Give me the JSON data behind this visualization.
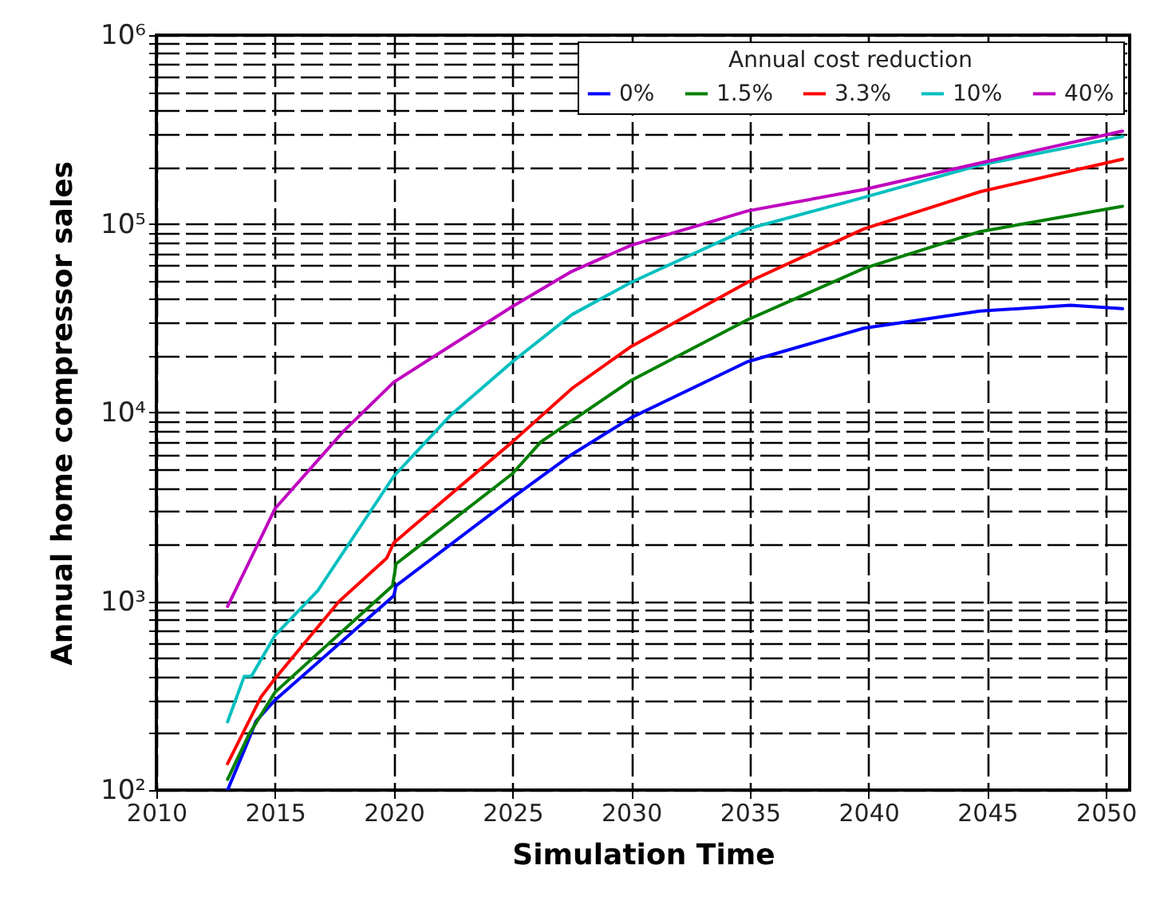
{
  "chart_data": {
    "type": "line",
    "xlabel": "Simulation Time",
    "ylabel": "Annual home compressor sales",
    "legend_title": "Annual cost reduction",
    "legend": "top right",
    "grid": true,
    "log": "y",
    "marker": "none",
    "line_style": "solid",
    "xlim": [
      2010,
      2051
    ],
    "xticks": [
      2010,
      2015,
      2020,
      2025,
      2030,
      2035,
      2040,
      2045,
      2050
    ],
    "ylim": [
      100,
      1000000
    ],
    "yticks": [
      {
        "value": 100,
        "label": "10²"
      },
      {
        "value": 200,
        "label": null
      },
      {
        "value": 300,
        "label": null
      },
      {
        "value": 400,
        "label": null
      },
      {
        "value": 500,
        "label": null
      },
      {
        "value": 600,
        "label": null
      },
      {
        "value": 700,
        "label": null
      },
      {
        "value": 800,
        "label": null
      },
      {
        "value": 900,
        "label": null
      },
      {
        "value": 1000,
        "label": "10³"
      },
      {
        "value": 2000,
        "label": null
      },
      {
        "value": 3000,
        "label": null
      },
      {
        "value": 4000,
        "label": null
      },
      {
        "value": 5000,
        "label": null
      },
      {
        "value": 6000,
        "label": null
      },
      {
        "value": 7000,
        "label": null
      },
      {
        "value": 8000,
        "label": null
      },
      {
        "value": 9000,
        "label": null
      },
      {
        "value": 10000,
        "label": "10⁴"
      },
      {
        "value": 20000,
        "label": null
      },
      {
        "value": 30000,
        "label": null
      },
      {
        "value": 40000,
        "label": null
      },
      {
        "value": 50000,
        "label": null
      },
      {
        "value": 60000,
        "label": null
      },
      {
        "value": 70000,
        "label": null
      },
      {
        "value": 80000,
        "label": null
      },
      {
        "value": 90000,
        "label": null
      },
      {
        "value": 100000,
        "label": "10⁵"
      },
      {
        "value": 200000,
        "label": null
      },
      {
        "value": 300000,
        "label": null
      },
      {
        "value": 400000,
        "label": null
      },
      {
        "value": 500000,
        "label": null
      },
      {
        "value": 600000,
        "label": null
      },
      {
        "value": 700000,
        "label": null
      },
      {
        "value": 800000,
        "label": null
      },
      {
        "value": 900000,
        "label": null
      },
      {
        "value": 1000000,
        "label": "10⁶"
      }
    ],
    "series": [
      {
        "name": "0%",
        "color": "#0000ff",
        "x": [
          2013,
          2013.8,
          2014.2,
          2015,
          2020,
          2020.1,
          2025,
          2027.5,
          2030,
          2034.9,
          2039.8,
          2044.7,
          2048.5,
          2050.7
        ],
        "values": [
          100,
          174,
          232,
          300,
          1070,
          1210,
          3540,
          6000,
          9400,
          18600,
          28000,
          34500,
          37000,
          35500
        ]
      },
      {
        "name": "1.5%",
        "color": "#008000",
        "x": [
          2013,
          2013.9,
          2015,
          2019.95,
          2020.1,
          2025,
          2026.2,
          2030,
          2034.9,
          2039.8,
          2044.7,
          2050.7
        ],
        "values": [
          114,
          197,
          330,
          1210,
          1580,
          4750,
          7000,
          14800,
          31000,
          58000,
          91000,
          124000
        ]
      },
      {
        "name": "3.3%",
        "color": "#ff0000",
        "x": [
          2013,
          2014.4,
          2015,
          2017.7,
          2019.7,
          2020,
          2025,
          2027.5,
          2030,
          2034.9,
          2039.8,
          2044.7,
          2050.7
        ],
        "values": [
          138,
          310,
          390,
          1000,
          1690,
          2040,
          7000,
          13400,
          22400,
          49000,
          94000,
          148000,
          220000
        ]
      },
      {
        "name": "10%",
        "color": "#00bfbf",
        "x": [
          2013,
          2013.7,
          2014,
          2015,
          2016.8,
          2020,
          2022.4,
          2025,
          2027.5,
          2030,
          2034.9,
          2039.8,
          2044.7,
          2050.7
        ],
        "values": [
          230,
          400,
          400,
          660,
          1140,
          4600,
          9700,
          18600,
          33000,
          49000,
          94000,
          138000,
          205000,
          290000
        ]
      },
      {
        "name": "40%",
        "color": "#bf00bf",
        "x": [
          2013,
          2015,
          2017.9,
          2020,
          2025,
          2027.5,
          2030,
          2034.9,
          2039.8,
          2044.7,
          2050.7
        ],
        "values": [
          940,
          3100,
          8000,
          14500,
          36500,
          56000,
          77000,
          117000,
          152000,
          210000,
          310000
        ]
      }
    ]
  }
}
